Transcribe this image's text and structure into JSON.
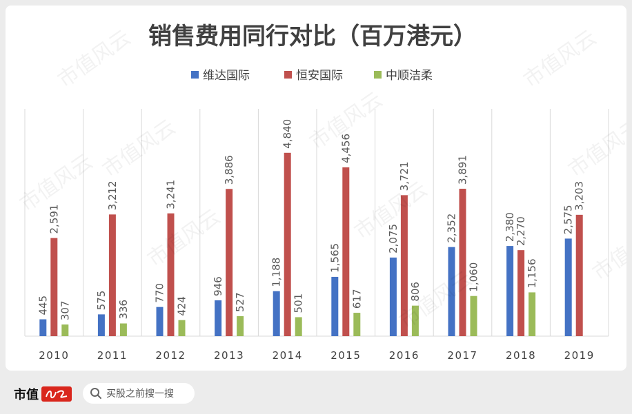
{
  "chart_data": {
    "type": "bar",
    "title": "销售费用同行对比（百万港元）",
    "categories": [
      "2010",
      "2011",
      "2012",
      "2013",
      "2014",
      "2015",
      "2016",
      "2017",
      "2018",
      "2019"
    ],
    "series": [
      {
        "name": "维达国际",
        "color": "#4472c4",
        "values": [
          445,
          575,
          770,
          946,
          1188,
          1565,
          2075,
          2352,
          2380,
          2575
        ]
      },
      {
        "name": "恒安国际",
        "color": "#c0504d",
        "values": [
          2591,
          3212,
          3241,
          3886,
          4840,
          4456,
          3721,
          3891,
          2270,
          3203
        ]
      },
      {
        "name": "中顺洁柔",
        "color": "#9bbb59",
        "values": [
          307,
          336,
          424,
          527,
          501,
          617,
          806,
          1060,
          1156,
          null
        ]
      }
    ],
    "ylim": [
      0,
      6000
    ],
    "grid": "vertical-category-separators",
    "legend": "top",
    "value_labels": "rotated-above-bars"
  },
  "watermark": {
    "text": "市值风云"
  },
  "footer": {
    "brand": "市值",
    "logo_text": "风云",
    "search_placeholder": "买股之前搜一搜"
  }
}
